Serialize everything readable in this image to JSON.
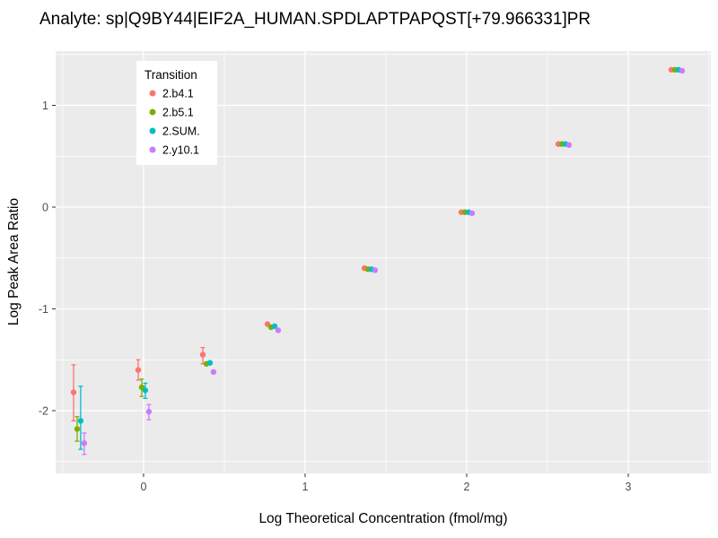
{
  "page": {
    "background": "#FFFFFF"
  },
  "chart_data": {
    "type": "scatter",
    "title": "Analyte: sp|Q9BY44|EIF2A_HUMAN.SPDLAPTPAPQST[+79.966331]PR",
    "xlabel": "Log Theoretical Concentration (fmol/mg)",
    "ylabel": "Log Peak Area Ratio",
    "xlim": [
      -0.544,
      3.511
    ],
    "ylim": [
      -2.617,
      1.533
    ],
    "xticks": [
      0,
      1,
      2,
      3
    ],
    "yticks": [
      -2,
      -1,
      0,
      1
    ],
    "grid": true,
    "panel_color": "#EBEBEB",
    "grid_color": "#FFFFFF",
    "tick_color": "#333333",
    "tick_label_color": "#4D4D4D",
    "legend": {
      "title": "Transition",
      "position": "top-left-inset"
    },
    "x": [
      -0.4,
      0,
      0.4,
      0.8,
      1.4,
      2.0,
      2.6,
      3.3
    ],
    "dodge_offsets": [
      -0.033,
      -0.011,
      0.011,
      0.033
    ],
    "series": [
      {
        "name": "2.b4.1",
        "color": "#F8766D",
        "y": [
          -1.82,
          -1.6,
          -1.45,
          -1.15,
          -0.6,
          -0.05,
          0.62,
          1.35
        ],
        "errors": [
          [
            -2.1,
            -1.55
          ],
          [
            -1.7,
            -1.5
          ],
          [
            -1.54,
            -1.38
          ],
          null,
          null,
          null,
          null,
          null
        ]
      },
      {
        "name": "2.b5.1",
        "color": "#7CAE00",
        "y": [
          -2.18,
          -1.77,
          -1.54,
          -1.18,
          -0.61,
          -0.05,
          0.62,
          1.35
        ],
        "errors": [
          [
            -2.3,
            -2.06
          ],
          [
            -1.86,
            -1.69
          ],
          null,
          null,
          null,
          null,
          null,
          null
        ]
      },
      {
        "name": "2.SUM.",
        "color": "#00BFC4",
        "y": [
          -2.1,
          -1.8,
          -1.53,
          -1.17,
          -0.61,
          -0.05,
          0.62,
          1.35
        ],
        "errors": [
          [
            -2.38,
            -1.76
          ],
          [
            -1.88,
            -1.73
          ],
          null,
          null,
          null,
          null,
          null,
          null
        ]
      },
      {
        "name": "2.y10.1",
        "color": "#C77CFF",
        "y": [
          -2.32,
          -2.01,
          -1.62,
          -1.21,
          -0.62,
          -0.06,
          0.61,
          1.34
        ],
        "errors": [
          [
            -2.43,
            -2.22
          ],
          [
            -2.09,
            -1.94
          ],
          null,
          null,
          null,
          null,
          null,
          null
        ]
      }
    ]
  }
}
